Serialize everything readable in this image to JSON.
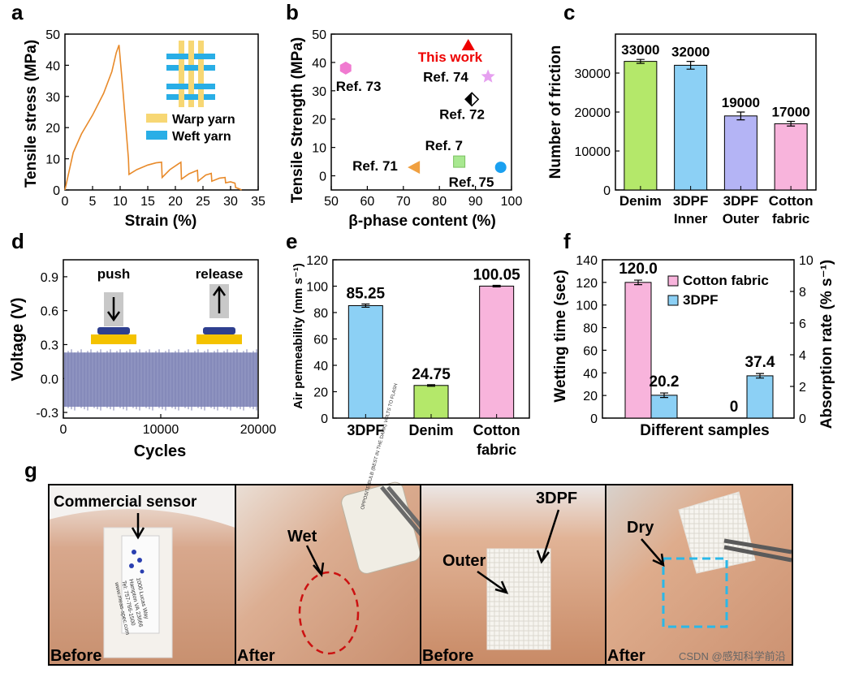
{
  "chart_data": [
    {
      "panel": "a",
      "type": "line",
      "xlabel": "Strain (%)",
      "ylabel": "Tensile stress (MPa)",
      "xlim": [
        0,
        35
      ],
      "ylim": [
        0,
        50
      ],
      "xticks": [
        "0",
        "5",
        "10",
        "15",
        "20",
        "25",
        "30",
        "35"
      ],
      "yticks": [
        "0",
        "10",
        "20",
        "30",
        "40",
        "50"
      ],
      "legend": [
        "Warp yarn",
        "Weft yarn"
      ],
      "x": [
        0,
        0.5,
        1.5,
        3,
        5,
        7,
        8.5,
        9.3,
        9.8,
        10.5,
        11.5,
        11.6,
        13,
        15,
        16.5,
        17.5,
        17.6,
        19,
        20.5,
        21,
        21.1,
        22.5,
        24,
        24.1,
        25.5,
        26.5,
        26.6,
        28,
        29,
        29.1,
        30,
        30.8,
        30.9,
        31.5,
        32
      ],
      "y": [
        0,
        4,
        12,
        18,
        24,
        31,
        38,
        44,
        46.5,
        32,
        10,
        5,
        6.5,
        8,
        8.7,
        8.9,
        4,
        6.5,
        8.3,
        8.9,
        3.5,
        5.2,
        6.3,
        2.8,
        4.8,
        5.3,
        2.8,
        3.8,
        4,
        2.3,
        2.6,
        2.2,
        0.8,
        0.4,
        0
      ]
    },
    {
      "panel": "b",
      "type": "scatter",
      "xlabel": "β-phase content (%)",
      "ylabel": "Tensile Strength (MPa)",
      "xlim": [
        50,
        100
      ],
      "ylim": [
        -5,
        50
      ],
      "xticks": [
        "50",
        "60",
        "70",
        "80",
        "90",
        "100"
      ],
      "yticks": [
        "0",
        "10",
        "20",
        "30",
        "40",
        "50"
      ],
      "points": [
        {
          "label": "This work",
          "x": 88,
          "y": 46,
          "marker": "triangle",
          "color": "#ee0000"
        },
        {
          "label": "Ref. 74",
          "x": 93.5,
          "y": 35,
          "marker": "star",
          "color": "#e6a0f0"
        },
        {
          "label": "Ref. 73",
          "x": 54,
          "y": 38,
          "marker": "hexagon",
          "color": "#f07ad0"
        },
        {
          "label": "Ref. 72",
          "x": 89,
          "y": 27,
          "marker": "diamond",
          "color": "#000000"
        },
        {
          "label": "Ref. 7",
          "x": 85.5,
          "y": 5,
          "marker": "square",
          "color": "#a8e890"
        },
        {
          "label": "Ref. 71",
          "x": 73,
          "y": 3,
          "marker": "triangle-left",
          "color": "#f0a040"
        },
        {
          "label": "Ref. 75",
          "x": 97,
          "y": 3,
          "marker": "circle",
          "color": "#1aa0f0"
        }
      ]
    },
    {
      "panel": "c",
      "type": "bar",
      "ylabel": "Number of friction",
      "ylim": [
        0,
        40000
      ],
      "yticks": [
        "0",
        "10000",
        "20000",
        "30000"
      ],
      "categories": [
        "Denim",
        "3DPF Inner",
        "3DPF Outer",
        "Cotton fabric"
      ],
      "cat_lines": [
        [
          "Denim",
          ""
        ],
        [
          "3DPF",
          "Inner"
        ],
        [
          "3DPF",
          "Outer"
        ],
        [
          "Cotton",
          "fabric"
        ]
      ],
      "values": [
        33000,
        32000,
        19000,
        17000
      ],
      "errors": [
        500,
        1000,
        1000,
        600
      ],
      "labels": [
        "33000",
        "32000",
        "19000",
        "17000"
      ],
      "colors": [
        "#b4e86a",
        "#8cd0f5",
        "#b4b4f5",
        "#f8b4dc"
      ]
    },
    {
      "panel": "d",
      "type": "line",
      "xlabel": "Cycles",
      "ylabel": "Voltage (V)",
      "xlim": [
        0,
        20000
      ],
      "ylim": [
        -0.35,
        1.05
      ],
      "xticks": [
        "0",
        "10000",
        "20000"
      ],
      "yticks": [
        "-0.3",
        "0.0",
        "0.3",
        "0.6",
        "0.9"
      ],
      "signal_range": [
        -0.25,
        0.23
      ],
      "annotations": [
        "push",
        "release"
      ]
    },
    {
      "panel": "e",
      "type": "bar",
      "ylabel": "Air permeability (mm s⁻¹)",
      "ylim": [
        0,
        120
      ],
      "yticks": [
        "0",
        "20",
        "40",
        "60",
        "80",
        "100",
        "120"
      ],
      "categories": [
        "3DPF",
        "Denim",
        "Cotton fabric"
      ],
      "cat_lines": [
        [
          "3DPF",
          ""
        ],
        [
          "Denim",
          ""
        ],
        [
          "Cotton",
          "fabric"
        ]
      ],
      "values": [
        85.25,
        24.75,
        100.05
      ],
      "errors": [
        1.2,
        0.6,
        0.6
      ],
      "labels": [
        "85.25",
        "24.75",
        "100.05"
      ],
      "colors": [
        "#8cd0f5",
        "#b4e86a",
        "#f8b4dc"
      ]
    },
    {
      "panel": "f",
      "type": "bar",
      "xlabel": "Different samples",
      "ylabel": "Wetting time (sec)",
      "y2label": "Absorption rate (% s⁻¹)",
      "ylim": [
        0,
        140
      ],
      "y2lim": [
        0,
        10
      ],
      "yticks": [
        "0",
        "20",
        "40",
        "60",
        "80",
        "100",
        "120",
        "140"
      ],
      "y2ticks": [
        "0",
        "2",
        "4",
        "6",
        "8",
        "10"
      ],
      "series": [
        {
          "name": "Cotton fabric",
          "color": "#f8b4dc",
          "values": [
            120.0,
            0
          ],
          "labels": [
            "120.0",
            "0"
          ]
        },
        {
          "name": "3DPF",
          "color": "#8cd0f5",
          "values": [
            20.2,
            37.4
          ],
          "labels": [
            "20.2",
            "37.4"
          ]
        }
      ]
    }
  ],
  "panel_labels": [
    "a",
    "b",
    "c",
    "d",
    "e",
    "f",
    "g"
  ],
  "photos": {
    "captions": [
      "Before",
      "After",
      "Before",
      "After"
    ],
    "annotations": [
      "Commercial sensor",
      "Wet",
      "3DPF",
      "Outer",
      "Dry"
    ],
    "sensor_text": [
      "1000 Lucas Way",
      "Hampton VA 23666",
      "Tel: 757-766-1500",
      "www.meas-spec.com"
    ],
    "bulb_text": "OPPOSITE BULB (BEST IN THE DARK) VOLTS TO FLASH"
  },
  "watermark": "CSDN @感知科学前沿"
}
